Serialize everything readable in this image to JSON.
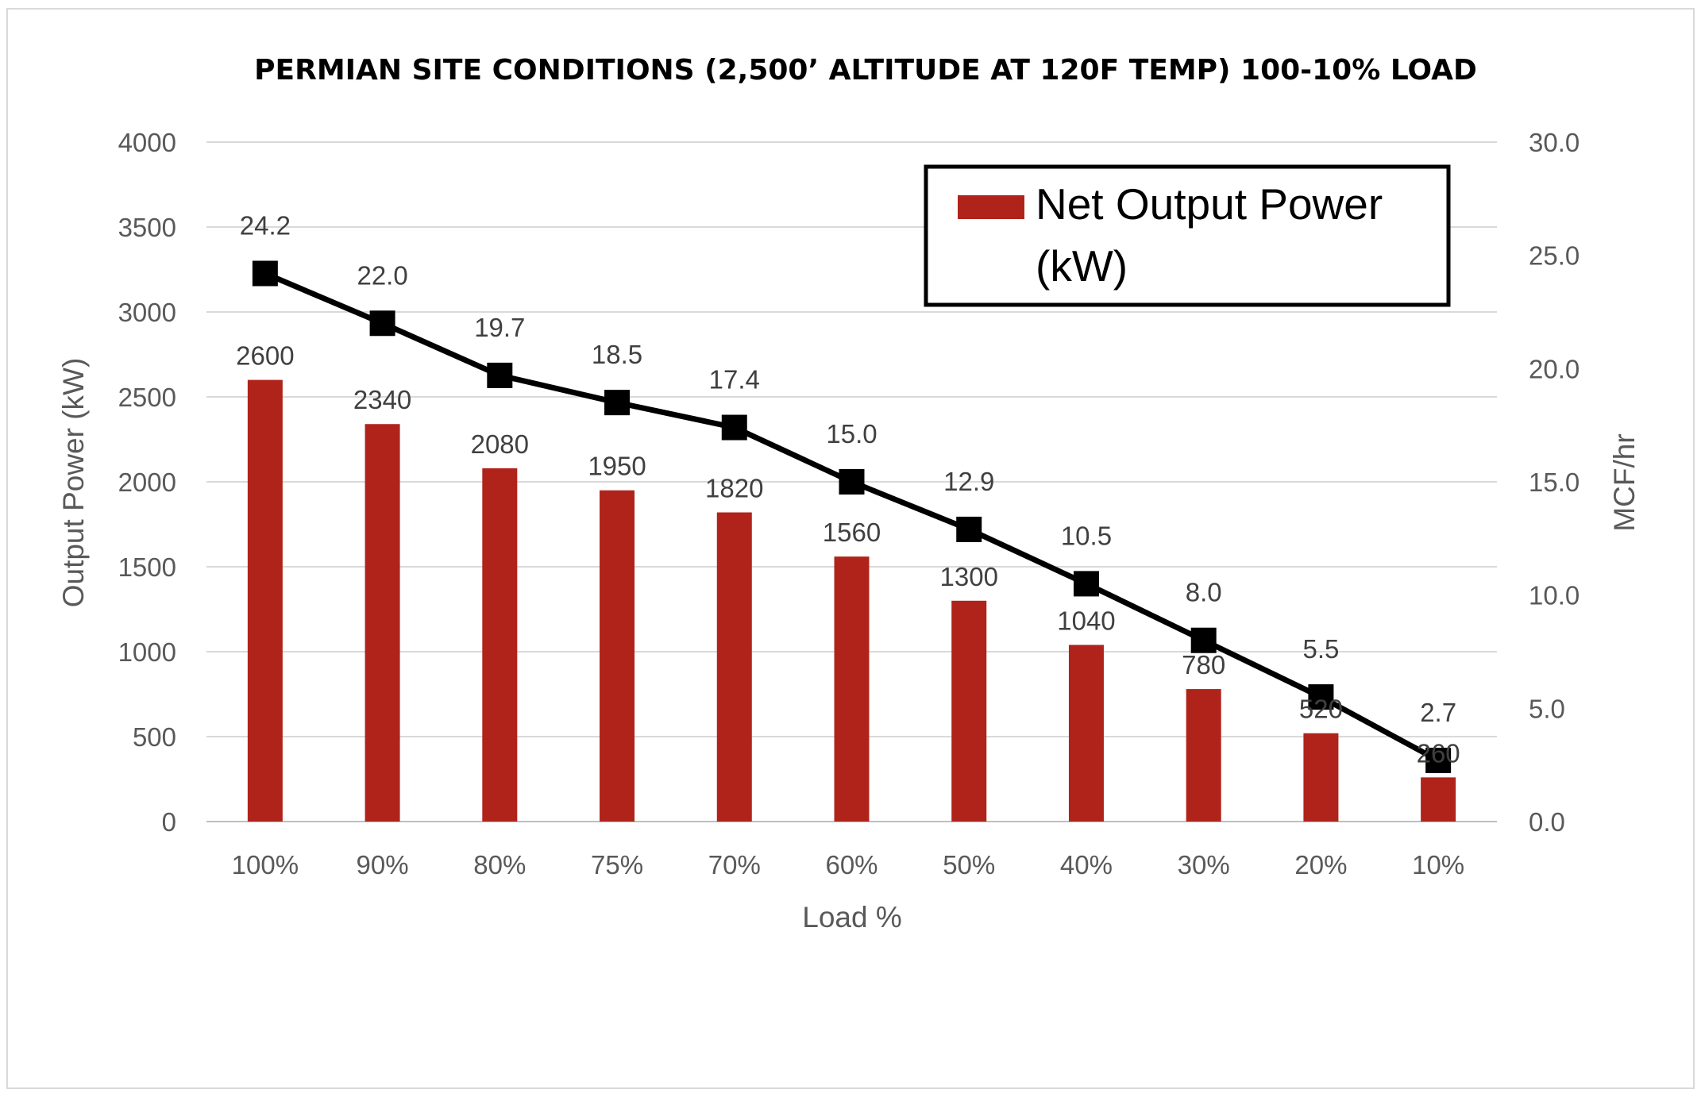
{
  "chart_data": {
    "type": "bar+line",
    "title": "PERMIAN SITE CONDITIONS (2,500’ ALTITUDE AT 120F TEMP) 100-10% LOAD",
    "xlabel": "Load %",
    "ylabel_left": "Output Power (kW)",
    "ylabel_right": "MCF/hr",
    "categories": [
      "100%",
      "90%",
      "80%",
      "75%",
      "70%",
      "60%",
      "50%",
      "40%",
      "30%",
      "20%",
      "10%"
    ],
    "ylim_left": [
      0,
      4000
    ],
    "yticks_left": [
      "0",
      "500",
      "1000",
      "1500",
      "2000",
      "2500",
      "3000",
      "3500",
      "4000"
    ],
    "ylim_right": [
      0,
      30
    ],
    "yticks_right": [
      "0.0",
      "5.0",
      "10.0",
      "15.0",
      "20.0",
      "25.0",
      "30.0"
    ],
    "grid": true,
    "legend_position": "top-right",
    "series": [
      {
        "name": "Net Output Power (kW)",
        "kind": "bar",
        "axis": "left",
        "color": "#b0231b",
        "values": [
          2600,
          2340,
          2080,
          1950,
          1820,
          1560,
          1300,
          1040,
          780,
          520,
          260
        ],
        "labels": [
          "2600",
          "2340",
          "2080",
          "1950",
          "1820",
          "1560",
          "1300",
          "1040",
          "780",
          "520",
          "260"
        ]
      },
      {
        "kind": "line",
        "axis": "right",
        "color": "#000000",
        "marker": "square",
        "values": [
          24.2,
          22.0,
          19.7,
          18.5,
          17.4,
          15.0,
          12.9,
          10.5,
          8.0,
          5.5,
          2.7
        ],
        "labels": [
          "24.2",
          "22.0",
          "19.7",
          "18.5",
          "17.4",
          "15.0",
          "12.9",
          "10.5",
          "8.0",
          "5.5",
          "2.7"
        ]
      }
    ],
    "legend": {
      "line1": "Net Output Power",
      "line2": "(kW)"
    }
  }
}
